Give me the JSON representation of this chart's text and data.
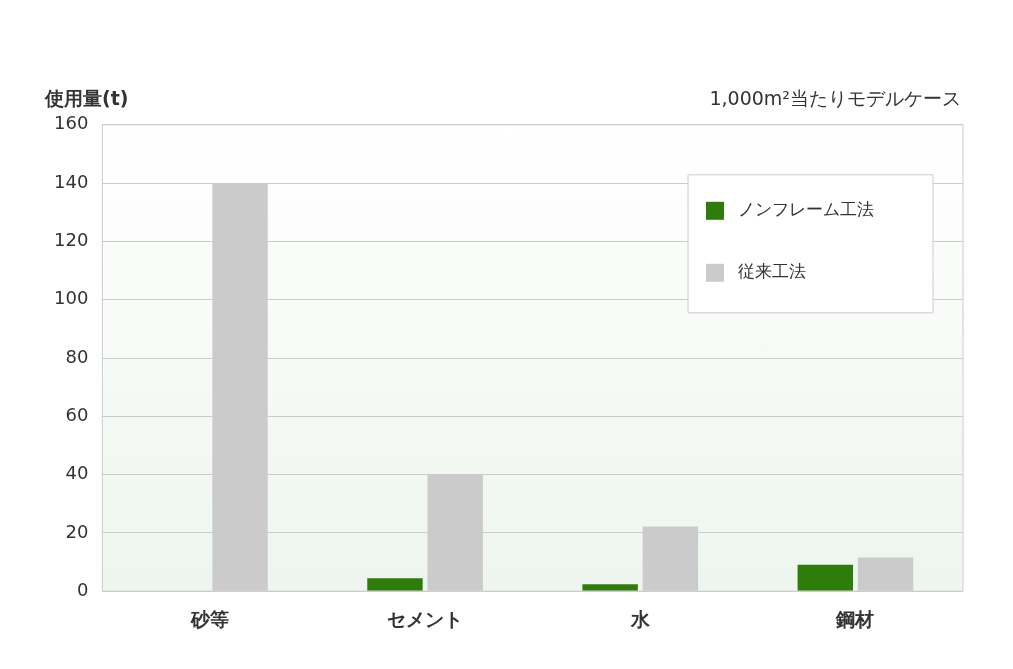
{
  "chart_data": {
    "type": "bar",
    "ylabel": "使用量(t)",
    "subtitle": "1,000m²当たりモデルケース",
    "categories": [
      "砂等",
      "セメント",
      "水",
      "鋼材"
    ],
    "series": [
      {
        "name": "ノンフレーム工法",
        "color": "#2e7d0a",
        "values": [
          0,
          4.4,
          2.4,
          9.1
        ]
      },
      {
        "name": "従来工法",
        "color": "#cbcbcb",
        "values": [
          140,
          40,
          22.2,
          11.6
        ]
      }
    ],
    "ylim": [
      0,
      160
    ],
    "yticks": [
      0,
      20,
      40,
      60,
      80,
      100,
      120,
      140,
      160
    ],
    "grid": "y",
    "legend": "top right"
  }
}
